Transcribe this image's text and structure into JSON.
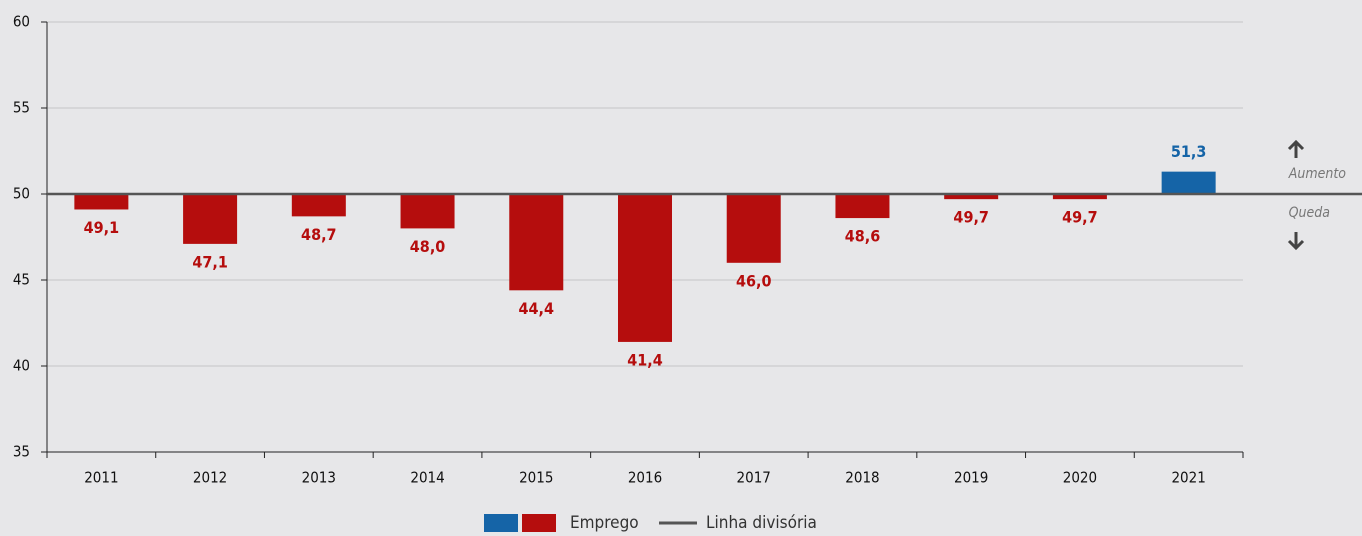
{
  "chart_data": {
    "type": "bar",
    "categories": [
      "2011",
      "2012",
      "2013",
      "2014",
      "2015",
      "2016",
      "2017",
      "2018",
      "2019",
      "2020",
      "2021"
    ],
    "series": [
      {
        "name": "Emprego",
        "values": [
          49.1,
          47.1,
          48.7,
          48.0,
          44.4,
          41.4,
          46.0,
          48.6,
          49.7,
          49.7,
          51.3
        ],
        "value_labels": [
          "49,1",
          "47,1",
          "48,7",
          "48,0",
          "44,4",
          "41,4",
          "46,0",
          "48,6",
          "49,7",
          "49,7",
          "51,3"
        ],
        "colors": [
          "#b50d0d",
          "#b50d0d",
          "#b50d0d",
          "#b50d0d",
          "#b50d0d",
          "#b50d0d",
          "#b50d0d",
          "#b50d0d",
          "#b50d0d",
          "#b50d0d",
          "#1564a7"
        ]
      }
    ],
    "divider": {
      "name": "Linha divisória",
      "value": 50,
      "color": "#555555"
    },
    "annotations": {
      "up": "Aumento",
      "down": "Queda"
    },
    "ylim": [
      35,
      60
    ],
    "yticks": [
      35,
      40,
      45,
      50,
      55,
      60
    ],
    "grid": true
  }
}
